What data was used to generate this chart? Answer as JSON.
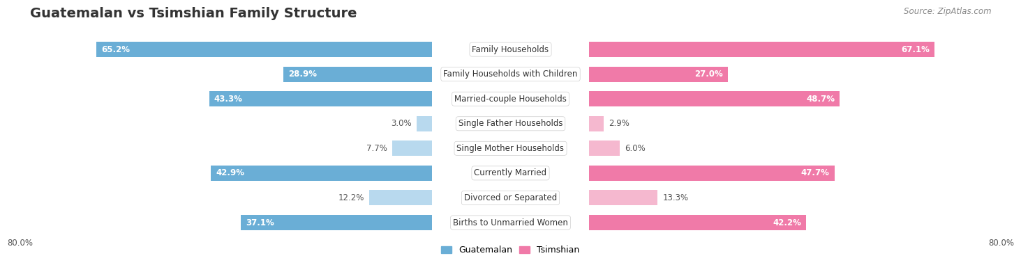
{
  "title": "Guatemalan vs Tsimshian Family Structure",
  "source": "Source: ZipAtlas.com",
  "categories": [
    "Family Households",
    "Family Households with Children",
    "Married-couple Households",
    "Single Father Households",
    "Single Mother Households",
    "Currently Married",
    "Divorced or Separated",
    "Births to Unmarried Women"
  ],
  "guatemalan": [
    65.2,
    28.9,
    43.3,
    3.0,
    7.7,
    42.9,
    12.2,
    37.1
  ],
  "tsimshian": [
    67.1,
    27.0,
    48.7,
    2.9,
    6.0,
    47.7,
    13.3,
    42.2
  ],
  "max_val": 80.0,
  "color_guatemalan": "#6aaed6",
  "color_guatemalan_light": "#b8d9ee",
  "color_tsimshian": "#f07aa8",
  "color_tsimshian_light": "#f5b8cf",
  "bg_row_dark": "#e8e8ef",
  "bg_row_light": "#f2f2f7",
  "bar_height": 0.62,
  "label_fontsize": 8.5,
  "title_fontsize": 14,
  "source_fontsize": 8.5,
  "axis_label_fontsize": 8.5,
  "legend_fontsize": 9,
  "large_threshold": 15
}
